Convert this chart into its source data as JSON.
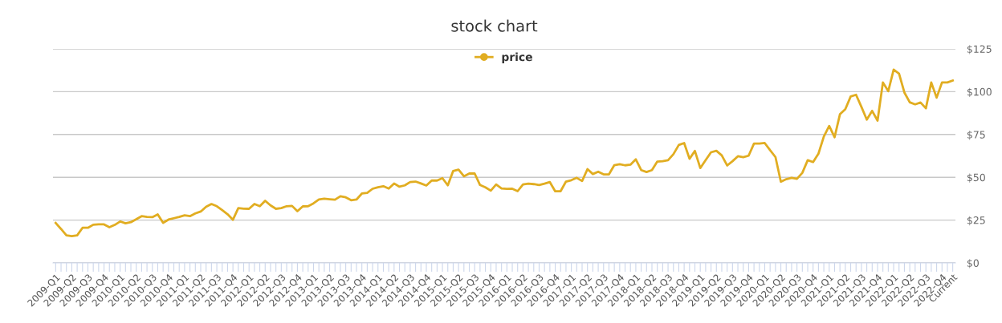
{
  "chart_data": {
    "type": "line",
    "title": "stock chart",
    "categories": [
      "2009-Q1",
      null,
      null,
      "2009-Q2",
      null,
      null,
      "2009-Q3",
      null,
      null,
      "2009-Q4",
      null,
      null,
      "2010-Q1",
      null,
      null,
      "2010-Q2",
      null,
      null,
      "2010-Q3",
      null,
      null,
      "2010-Q4",
      null,
      null,
      "2011-Q1",
      null,
      null,
      "2011-Q2",
      null,
      null,
      "2011-Q3",
      null,
      null,
      "2011-Q4",
      null,
      null,
      "2012-Q1",
      null,
      null,
      "2012-Q2",
      null,
      null,
      "2012-Q3",
      null,
      null,
      "2012-Q4",
      null,
      null,
      "2013-Q1",
      null,
      null,
      "2013-Q2",
      null,
      null,
      "2013-Q3",
      null,
      null,
      "2013-Q4",
      null,
      null,
      "2014-Q1",
      null,
      null,
      "2014-Q2",
      null,
      null,
      "2014-Q3",
      null,
      null,
      "2014-Q4",
      null,
      null,
      "2015-Q1",
      null,
      null,
      "2015-Q2",
      null,
      null,
      "2015-Q3",
      null,
      null,
      "2015-Q4",
      null,
      null,
      "2016-Q1",
      null,
      null,
      "2016-Q2",
      null,
      null,
      "2016-Q3",
      null,
      null,
      "2016-Q4",
      null,
      null,
      "2017-Q1",
      null,
      null,
      "2017-Q2",
      null,
      null,
      "2017-Q3",
      null,
      null,
      "2017-Q4",
      null,
      null,
      "2018-Q1",
      null,
      null,
      "2018-Q2",
      null,
      null,
      "2018-Q3",
      null,
      null,
      "2018-Q4",
      null,
      null,
      "2019-Q1",
      null,
      null,
      "2019-Q2",
      null,
      null,
      "2019-Q3",
      null,
      null,
      "2019-Q4",
      null,
      null,
      "2020-Q1",
      null,
      null,
      "2020-Q2",
      null,
      null,
      "2020-Q3",
      null,
      null,
      "2020-Q4",
      null,
      null,
      "2021-Q1",
      null,
      null,
      "2021-Q2",
      null,
      null,
      "2021-Q3",
      null,
      null,
      "2021-Q4",
      null,
      null,
      "2022-Q1",
      null,
      null,
      "2022-Q2",
      null,
      null,
      "2022-Q3",
      null,
      null,
      "2022-Q4",
      null,
      "Current"
    ],
    "series": [
      {
        "name": "price",
        "color": "#e1ad21",
        "values": [
          23.3,
          19.8,
          16.1,
          15.6,
          16.1,
          20.5,
          20.5,
          22.3,
          22.5,
          22.5,
          20.8,
          22.2,
          24.2,
          23.1,
          23.8,
          25.5,
          27.3,
          26.9,
          26.7,
          28.3,
          23.4,
          25.3,
          26.1,
          26.9,
          27.8,
          27.3,
          28.9,
          30,
          32.8,
          34.4,
          33.1,
          30.8,
          28.4,
          25.2,
          32,
          31.7,
          31.6,
          34.4,
          33.1,
          36.3,
          33.6,
          31.6,
          32,
          33.1,
          33.3,
          30.2,
          33,
          33.1,
          34.8,
          37,
          37.5,
          37.2,
          36.9,
          38.9,
          38.3,
          36.6,
          37,
          40.5,
          40.9,
          43.3,
          44.2,
          44.8,
          43.4,
          46.4,
          44.5,
          45.3,
          47.2,
          47.5,
          46.4,
          45.2,
          48.1,
          48.1,
          49.5,
          45.3,
          53.7,
          54.5,
          50.6,
          52.2,
          52.2,
          45.5,
          44.1,
          42.2,
          45.8,
          43.5,
          43.2,
          43.3,
          41.9,
          45.8,
          46.3,
          46,
          45.5,
          46.3,
          47.2,
          41.8,
          41.9,
          47.5,
          48.3,
          49.7,
          47.8,
          54.8,
          51.9,
          53.3,
          51.7,
          51.7,
          57.1,
          57.6,
          57,
          57.4,
          60.5,
          54.2,
          53.1,
          54.2,
          59.2,
          59.4,
          60,
          63.5,
          68.9,
          70,
          60.8,
          65.4,
          55.4,
          60,
          64.6,
          65.5,
          62.8,
          56.9,
          59.4,
          62.3,
          61.7,
          62.6,
          69.7,
          69.7,
          70,
          65.8,
          61.8,
          47.4,
          48.9,
          49.7,
          49.1,
          52.6,
          60,
          58.9,
          63.8,
          73.8,
          80,
          73.4,
          86.8,
          89.8,
          97.2,
          98.2,
          91.1,
          83.7,
          88.8,
          83.1,
          105.4,
          100.3,
          112.9,
          110.6,
          99.5,
          93.8,
          92.6,
          93.7,
          90.3,
          105.4,
          96.5,
          105.4,
          105.4,
          106.5
        ]
      }
    ],
    "ylim": [
      0,
      125
    ],
    "yticks": [
      {
        "value": 0,
        "label": "$0"
      },
      {
        "value": 25,
        "label": "$25"
      },
      {
        "value": 50,
        "label": "$50"
      },
      {
        "value": 75,
        "label": "$75"
      },
      {
        "value": 100,
        "label": "$100"
      },
      {
        "value": 125,
        "label": "$125"
      }
    ],
    "grid": "y",
    "legend": "top",
    "line_style": "solid"
  }
}
